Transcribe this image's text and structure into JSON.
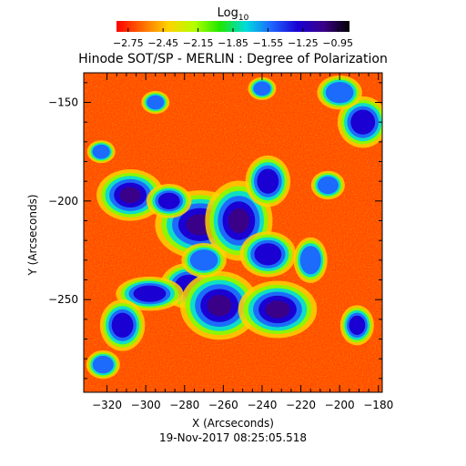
{
  "figure": {
    "title": "Hinode SOT/SP - MERLIN : Degree of Polarization",
    "colorbar": {
      "label_main": "Log",
      "label_sub": "10",
      "ticks": [
        "-2.75",
        "-2.45",
        "-2.15",
        "-1.85",
        "-1.55",
        "-1.25",
        "-0.95"
      ],
      "range": [
        -2.85,
        -0.85
      ],
      "colormap": [
        "#ff0000",
        "#ff6a00",
        "#ffd200",
        "#b4ff00",
        "#1ee600",
        "#00dcdc",
        "#1e64ff",
        "#1a00d2",
        "#3a0088",
        "#000000"
      ]
    },
    "x_axis": {
      "label": "X (Arcseconds)",
      "range": [
        -332,
        -178
      ],
      "ticks": [
        {
          "value": -320,
          "label": "−320"
        },
        {
          "value": -300,
          "label": "−300"
        },
        {
          "value": -280,
          "label": "−280"
        },
        {
          "value": -260,
          "label": "−260"
        },
        {
          "value": -240,
          "label": "−240"
        },
        {
          "value": -220,
          "label": "−220"
        },
        {
          "value": -200,
          "label": "−200"
        },
        {
          "value": -180,
          "label": "−180"
        }
      ]
    },
    "y_axis": {
      "label": "Y (Arcseconds)",
      "range": [
        -297,
        -135
      ],
      "ticks": [
        {
          "value": -150,
          "label": "−150"
        },
        {
          "value": -200,
          "label": "−200"
        },
        {
          "value": -250,
          "label": "−250"
        }
      ]
    },
    "timestamp": "19-Nov-2017 08:25:05.518",
    "map_regions": [
      {
        "x": -272,
        "y": -212,
        "rx": 16,
        "ry": 12,
        "level": 0.95
      },
      {
        "x": -252,
        "y": -210,
        "rx": 12,
        "ry": 14,
        "level": 0.9
      },
      {
        "x": -308,
        "y": -197,
        "rx": 12,
        "ry": 9,
        "level": 0.95
      },
      {
        "x": -288,
        "y": -200,
        "rx": 8,
        "ry": 6,
        "level": 0.85
      },
      {
        "x": -237,
        "y": -190,
        "rx": 8,
        "ry": 9,
        "level": 0.85
      },
      {
        "x": -237,
        "y": -227,
        "rx": 10,
        "ry": 8,
        "level": 0.85
      },
      {
        "x": -278,
        "y": -243,
        "rx": 10,
        "ry": 8,
        "level": 0.8
      },
      {
        "x": -262,
        "y": -253,
        "rx": 14,
        "ry": 12,
        "level": 1.0
      },
      {
        "x": -232,
        "y": -255,
        "rx": 14,
        "ry": 10,
        "level": 1.0
      },
      {
        "x": -298,
        "y": -247,
        "rx": 12,
        "ry": 6,
        "level": 0.8
      },
      {
        "x": -312,
        "y": -263,
        "rx": 8,
        "ry": 9,
        "level": 0.85
      },
      {
        "x": -270,
        "y": -230,
        "rx": 8,
        "ry": 6,
        "level": 0.7
      },
      {
        "x": -215,
        "y": -230,
        "rx": 6,
        "ry": 8,
        "level": 0.65
      },
      {
        "x": -188,
        "y": -160,
        "rx": 9,
        "ry": 9,
        "level": 0.85
      },
      {
        "x": -200,
        "y": -145,
        "rx": 8,
        "ry": 6,
        "level": 0.6
      },
      {
        "x": -240,
        "y": -143,
        "rx": 5,
        "ry": 4,
        "level": 0.6
      },
      {
        "x": -295,
        "y": -150,
        "rx": 5,
        "ry": 4,
        "level": 0.55
      },
      {
        "x": -191,
        "y": -263,
        "rx": 6,
        "ry": 7,
        "level": 0.8
      },
      {
        "x": -322,
        "y": -283,
        "rx": 6,
        "ry": 5,
        "level": 0.7
      },
      {
        "x": -206,
        "y": -192,
        "rx": 6,
        "ry": 5,
        "level": 0.55
      },
      {
        "x": -323,
        "y": -175,
        "rx": 5,
        "ry": 4,
        "level": 0.5
      }
    ]
  }
}
